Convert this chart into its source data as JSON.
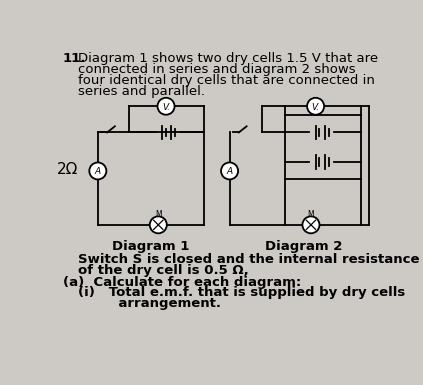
{
  "bg_color": "#cdc9c4",
  "text_color": "#000000",
  "title_number": "11.",
  "title_line1": "Diagram 1 shows two dry cells 1.5 V that are",
  "title_line2": "connected in series and diagram 2 shows",
  "title_line3": "four identical dry cells that are connected in",
  "title_line4": "series and parallel.",
  "label_2ohm": "2Ω",
  "diagram1_label": "Diagram 1",
  "diagram2_label": "Diagram 2",
  "switch_line1": "Switch S is closed and the internal resistance",
  "switch_line2": "of the dry cell is 0.5 Ω,",
  "part_a": "(a)  Calculate for each diagram:",
  "part_i_line1": "(i)   Total e.m.f. that is supplied by dry cells",
  "part_i_line2": "       arrangement.",
  "fig_width": 4.23,
  "fig_height": 3.85,
  "dpi": 100
}
